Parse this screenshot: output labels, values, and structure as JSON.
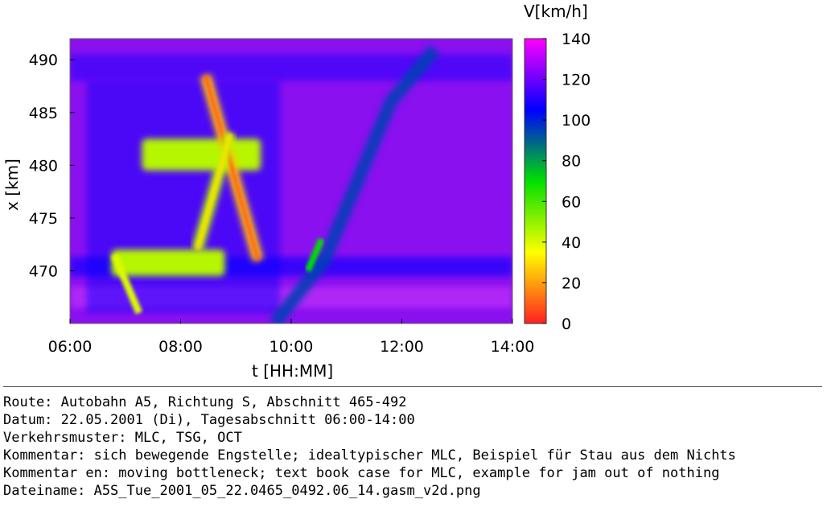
{
  "chart_data": {
    "type": "heatmap",
    "xlabel": "t [HH:MM]",
    "ylabel": "x [km]",
    "colorbar_label": "V[km/h]",
    "x_ticks": [
      "06:00",
      "08:00",
      "10:00",
      "12:00",
      "14:00"
    ],
    "x_range_hours": [
      6,
      14
    ],
    "y_ticks": [
      "470",
      "475",
      "480",
      "485",
      "490"
    ],
    "y_range_km": [
      465,
      492
    ],
    "colorbar_ticks": [
      "0",
      "20",
      "40",
      "60",
      "80",
      "100",
      "120",
      "140"
    ],
    "v_range_kmh": [
      0,
      140
    ],
    "colorscale": [
      "#ff2020",
      "#ffff00",
      "#00e000",
      "#0000ff",
      "#ff00ff"
    ],
    "congestion": [
      {
        "name": "MLC region upper",
        "t_start": 7.3,
        "t_end": 9.45,
        "x_start": 479.5,
        "x_end": 482.5,
        "v": 45
      },
      {
        "name": "MLC region lower",
        "t_start": 6.75,
        "t_end": 8.8,
        "x_start": 469.5,
        "x_end": 472.0,
        "v": 45
      },
      {
        "name": "moving bottleneck jam",
        "t_start": 8.45,
        "x_start": 488.5,
        "t_end": 9.4,
        "x_end": 471.0,
        "v": 10
      },
      {
        "name": "wide jam 1",
        "t_start": 8.3,
        "x_start": 472.0,
        "t_end": 8.9,
        "x_end": 483.0,
        "v": 30
      },
      {
        "name": "stau aus dem Nichts",
        "t_start": 6.8,
        "x_start": 471.5,
        "t_end": 7.25,
        "x_start2": 466.0,
        "v": 30
      }
    ],
    "moving_bottleneck_track": [
      {
        "t": 9.7,
        "x": 465.0
      },
      {
        "t": 10.6,
        "x": 471.0
      },
      {
        "t": 11.8,
        "x": 486.0
      },
      {
        "t": 12.6,
        "x": 491.0
      }
    ]
  },
  "info": {
    "route": "Route: Autobahn A5, Richtung S, Abschnitt 465-492",
    "datum": "Datum: 22.05.2001 (Di), Tagesabschnitt 06:00-14:00",
    "muster": "Verkehrsmuster: MLC, TSG, OCT",
    "kommentar": "Kommentar: sich bewegende Engstelle; idealtypischer MLC, Beispiel für Stau aus dem Nichts",
    "kommentar_en": "Kommentar en: moving bottleneck; text book case for MLC, example for jam out of nothing",
    "dateiname": "Dateiname: A5S_Tue_2001_05_22.0465_0492.06_14.gasm_v2d.png"
  }
}
